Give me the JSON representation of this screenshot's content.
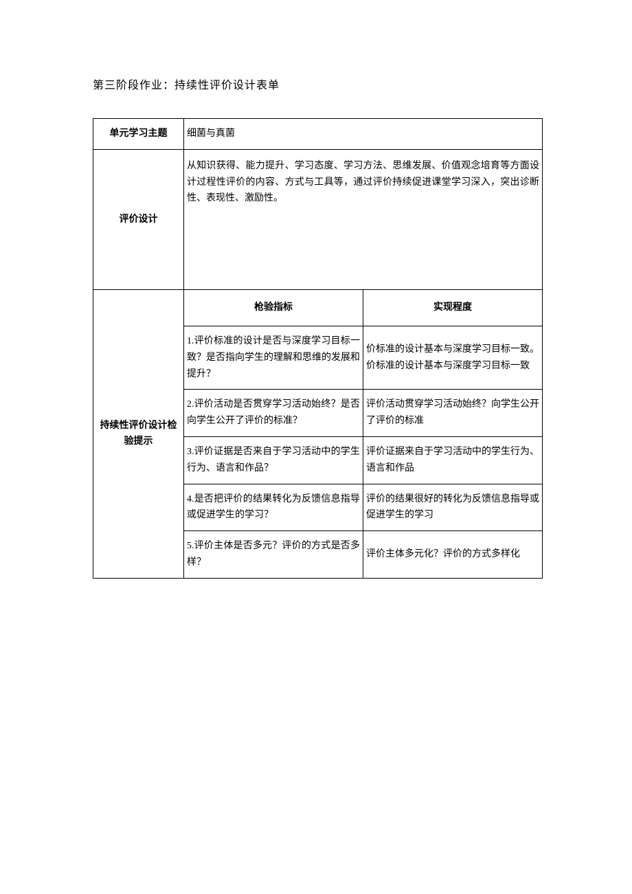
{
  "page": {
    "title": "第三阶段作业：持续性评价设计表单"
  },
  "table": {
    "row1_label": "单元学习主题",
    "row1_value": "细菌与真菌",
    "row2_label": "评价设计",
    "row2_value": "从知识获得、能力提升、学习态度、学习方法、思维发展、价值观念培育等方面设计过程性评价的内容、方式与工具等，通过评价持续促进课堂学习深入，突出诊断性、表现性、激励性。",
    "row3_label": "持续性评价设计检验提示",
    "header_indicator": "枪验指标",
    "header_result": "实现程度",
    "rows": [
      {
        "indicator": "1.评价标准的设计是否与深度学习目标一致？是否指向学生的理解和思维的发展和提升？",
        "result": "价标准的设计基本与深度学习目标一致。价标准的设计基本与深度学习目标一致"
      },
      {
        "indicator": "2.评价活动是否贯穿学习活动始终？是否向学生公开了评价的标准？",
        "result": "评价活动贯穿学习活动始终？向学生公开了评价的标准"
      },
      {
        "indicator": "3.评价证据是否来自于学习活动中的学生行为、语言和作品？",
        "result": "评价证据来自于学习活动中的学生行为、语言和作品"
      },
      {
        "indicator": "4.是否把评价的结果转化为反馈信息指导或促进学生的学习？",
        "result": "评价的结果很好的转化为反馈信息指导或促进学生的学习"
      },
      {
        "indicator": "5.评价主体是否多元？评价的方式是否多样？",
        "result": "评价主体多元化？评价的方式多样化"
      }
    ]
  },
  "colors": {
    "text": "#000000",
    "border": "#000000",
    "background": "#ffffff"
  },
  "typography": {
    "title_fontsize": 16,
    "body_fontsize": 14,
    "font_family": "SimSun"
  }
}
